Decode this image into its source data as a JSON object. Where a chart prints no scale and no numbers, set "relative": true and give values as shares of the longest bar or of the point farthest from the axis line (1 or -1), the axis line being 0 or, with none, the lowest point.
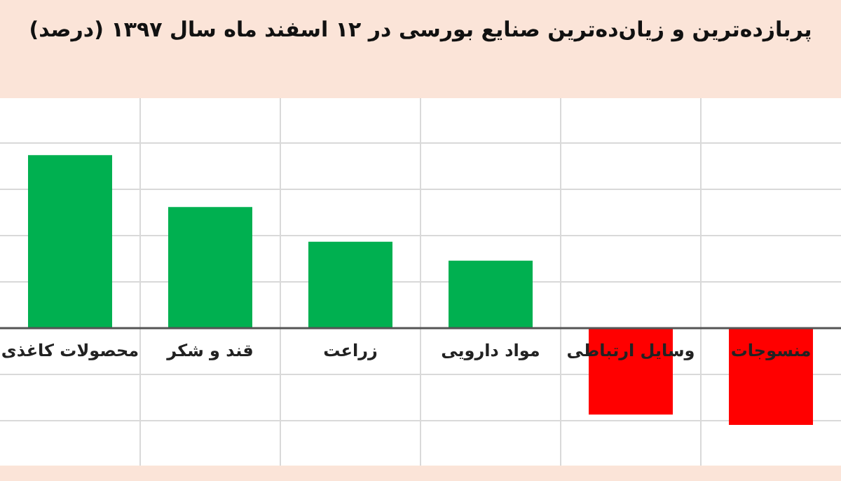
{
  "chart_data": {
    "type": "bar",
    "title": "پربازده‌ترین و زیان‌ده‌ترین صنایع بورسی در ۱۲ اسفند ماه سال ۱۳۹۷ (درصد)",
    "relative": true,
    "grid": true,
    "categories": [
      "محصولات کاغذی",
      "قند و شکر",
      "زراعت",
      "مواد دارویی",
      "وسایل ارتباطی",
      "منسوجات"
    ],
    "values": [
      1,
      0.7,
      0.5,
      0.39,
      -0.5,
      -0.56
    ],
    "colors": [
      "#00b050",
      "#00b050",
      "#00b050",
      "#00b050",
      "#ff0000",
      "#ff0000"
    ]
  }
}
